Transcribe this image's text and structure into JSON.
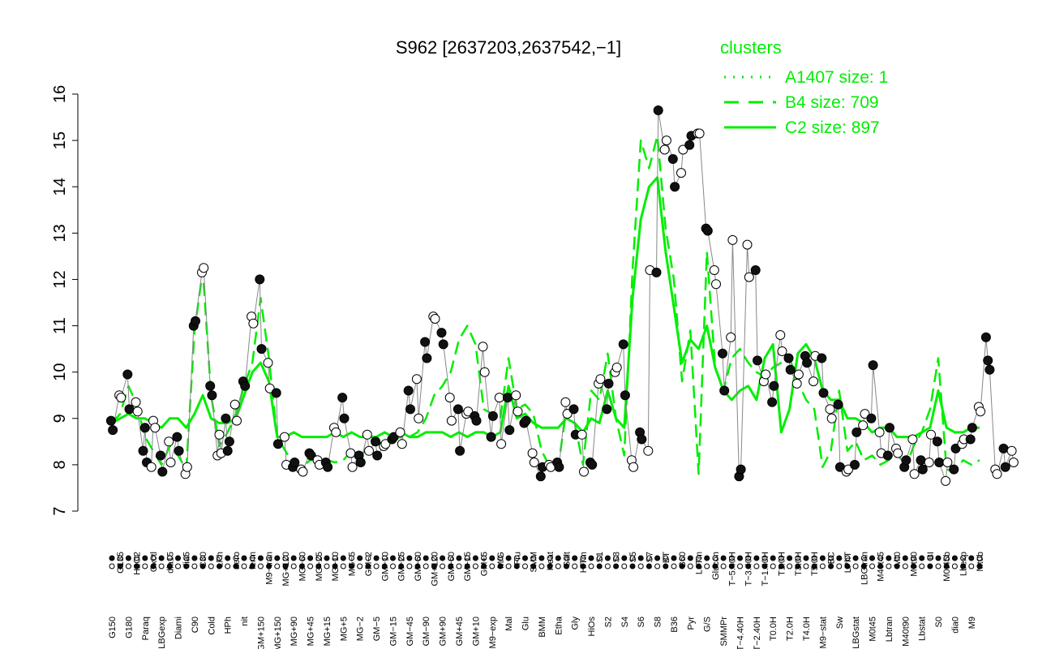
{
  "chart_data": {
    "type": "line",
    "title": "S962 [2637203,2637542,−1]",
    "xlabel": "",
    "ylabel": "",
    "ylim": [
      7,
      16
    ],
    "yticks": [
      7,
      8,
      9,
      10,
      11,
      12,
      13,
      14,
      15,
      16
    ],
    "grid": false,
    "legend": {
      "title": "clusters",
      "placement": "top-right",
      "entries": [
        {
          "label": "A1407 size: 1",
          "style": "dotted",
          "color": "#00ee00"
        },
        {
          "label": "B4 size: 709",
          "style": "dashed",
          "color": "#00ee00"
        },
        {
          "label": "C2 size: 897",
          "style": "solid",
          "color": "#00ee00"
        }
      ]
    },
    "x_tick_labels": [
      "G150",
      "G135",
      "G180",
      "H2O2",
      "Paraq",
      "Oxctl",
      "LBGexp",
      "dia15",
      "Diami",
      "dia5",
      "C90",
      "C30",
      "Cold",
      "LPh",
      "HPh",
      "aero",
      "nit",
      "ferm",
      "GM+150",
      "M9−tran",
      "MG+150",
      "MG+120",
      "MG+90",
      "MG+60",
      "MG+45",
      "MG+25",
      "MG+15",
      "MG+10",
      "MG+5",
      "MG−5",
      "MG−2",
      "GM−2",
      "GM−5",
      "GM−10",
      "GM−15",
      "GM−25",
      "GM−45",
      "GM−60",
      "GM−90",
      "GM+120",
      "GM+90",
      "GM+60",
      "GM+45",
      "GM+15",
      "GM+10",
      "GM+5",
      "M9−exp",
      "M/G",
      "Mal",
      "Fru",
      "Glu",
      "SMM",
      "BMM",
      "Heat",
      "Etha",
      "Salt",
      "Gly",
      "HiTm",
      "HiOs",
      "S1",
      "S2",
      "S3",
      "S4",
      "S5",
      "S6",
      "S7",
      "S8",
      "BT",
      "B36",
      "B60",
      "Pyr",
      "LoTm",
      "G/S",
      "Glucon",
      "SMMPr",
      "T−5.40H",
      "T−4.40H",
      "T−3.40H",
      "T−2.40H",
      "T−1.40H",
      "T0.0H",
      "T1.0H",
      "T2.0H",
      "T3.0H",
      "T4.0H",
      "T5.0H",
      "M9−stat",
      "BC",
      "Sw",
      "LPhT",
      "LBGstat",
      "LBGtran",
      "M0t45",
      "M40t45",
      "Lbtran",
      "Mt0",
      "M40t90",
      "M0t90",
      "Lbstat",
      "BI",
      "S0",
      "M0t45b",
      "dia0",
      "Lbexp",
      "M9",
      "Mt0b"
    ],
    "series": [
      {
        "name": "B4 size: 709",
        "style": "dashed",
        "values": [
          8.9,
          9.1,
          9.7,
          9.3,
          8.6,
          8.3,
          8.0,
          8.4,
          8.2,
          7.9,
          10.9,
          12.2,
          9.5,
          8.4,
          8.7,
          9.1,
          9.7,
          10.2,
          11.6,
          10.3,
          8.6,
          8.3,
          8.0,
          7.95,
          8.1,
          8.1,
          8.1,
          8.05,
          8.1,
          8.3,
          8.2,
          8.35,
          8.5,
          8.45,
          8.55,
          8.6,
          8.6,
          8.7,
          9.0,
          9.5,
          9.7,
          10.0,
          10.7,
          11.0,
          10.6,
          9.2,
          9.1,
          9.0,
          10.3,
          9.2,
          9.3,
          9.1,
          8.3,
          7.95,
          7.95,
          9.2,
          8.9,
          8.0,
          9.6,
          9.4,
          10.4,
          9.0,
          8.2,
          12.2,
          15.0,
          14.4,
          15.1,
          13.1,
          12.0,
          9.8,
          10.9,
          7.8,
          12.6,
          10.1,
          9.6,
          10.3,
          10.5,
          10.2,
          10.0,
          9.9,
          10.1,
          10.2,
          10.3,
          9.8,
          9.4,
          9.2,
          7.95,
          8.3,
          9.6,
          8.3,
          8.5,
          8.1,
          8.2,
          8.0,
          8.1,
          8.3,
          7.9,
          8.4,
          8.7,
          9.2,
          10.3,
          7.9,
          7.85,
          8.1,
          8.0,
          8.1
        ]
      },
      {
        "name": "C2 size: 897",
        "style": "solid",
        "values": [
          8.9,
          9.0,
          9.1,
          9.0,
          9.0,
          8.9,
          8.8,
          9.0,
          9.0,
          8.8,
          9.1,
          9.5,
          9.0,
          8.9,
          8.9,
          9.0,
          9.5,
          10.0,
          10.2,
          9.8,
          8.6,
          8.6,
          8.7,
          8.6,
          8.6,
          8.6,
          8.6,
          8.7,
          8.6,
          8.7,
          8.6,
          8.6,
          8.6,
          8.7,
          8.6,
          8.7,
          8.6,
          8.6,
          8.7,
          8.7,
          8.7,
          8.6,
          8.7,
          8.6,
          8.7,
          8.7,
          8.6,
          8.7,
          9.7,
          9.0,
          9.1,
          8.9,
          8.8,
          8.8,
          8.8,
          9.0,
          8.9,
          8.7,
          9.0,
          8.9,
          9.6,
          9.0,
          8.8,
          11.6,
          13.3,
          14.0,
          14.2,
          12.6,
          11.4,
          10.2,
          10.7,
          10.5,
          11.0,
          10.1,
          9.6,
          9.4,
          9.6,
          9.7,
          9.4,
          10.3,
          10.6,
          8.7,
          9.2,
          10.4,
          10.6,
          10.3,
          9.6,
          9.4,
          9.4,
          9.0,
          9.0,
          8.9,
          8.7,
          8.8,
          8.8,
          8.6,
          8.6,
          8.6,
          8.7,
          8.8,
          9.6,
          8.8,
          8.7,
          8.7,
          8.8,
          8.8
        ]
      }
    ],
    "points": [
      {
        "x": 0,
        "ys": [
          8.95,
          8.75
        ]
      },
      {
        "x": 1,
        "ys": [
          9.5,
          9.45
        ]
      },
      {
        "x": 2,
        "ys": [
          9.95,
          9.2
        ]
      },
      {
        "x": 3,
        "ys": [
          9.35,
          9.15
        ]
      },
      {
        "x": 4,
        "ys": [
          8.3,
          8.8,
          8.05
        ]
      },
      {
        "x": 5,
        "ys": [
          7.95,
          8.95,
          8.8
        ]
      },
      {
        "x": 6,
        "ys": [
          8.2,
          7.85
        ]
      },
      {
        "x": 7,
        "ys": [
          8.5,
          8.05
        ]
      },
      {
        "x": 8,
        "ys": [
          8.6,
          8.3
        ]
      },
      {
        "x": 9,
        "ys": [
          7.8,
          7.95
        ]
      },
      {
        "x": 10,
        "ys": [
          11.0,
          11.1
        ]
      },
      {
        "x": 11,
        "ys": [
          12.15,
          12.25
        ]
      },
      {
        "x": 12,
        "ys": [
          9.7,
          9.5
        ]
      },
      {
        "x": 13,
        "ys": [
          8.2,
          8.65,
          8.25
        ]
      },
      {
        "x": 14,
        "ys": [
          9.0,
          8.3,
          8.5
        ]
      },
      {
        "x": 15,
        "ys": [
          9.3,
          8.95
        ]
      },
      {
        "x": 16,
        "ys": [
          9.8,
          9.7
        ]
      },
      {
        "x": 17,
        "ys": [
          11.2,
          11.05
        ]
      },
      {
        "x": 18,
        "ys": [
          12.0,
          10.5
        ]
      },
      {
        "x": 19,
        "ys": [
          10.2,
          9.65
        ]
      },
      {
        "x": 20,
        "ys": [
          9.55,
          8.45
        ]
      },
      {
        "x": 21,
        "ys": [
          8.6,
          8.0
        ]
      },
      {
        "x": 22,
        "ys": [
          7.95,
          8.05
        ]
      },
      {
        "x": 23,
        "ys": [
          7.9,
          7.85
        ]
      },
      {
        "x": 24,
        "ys": [
          8.25,
          8.2
        ]
      },
      {
        "x": 25,
        "ys": [
          8.1,
          8.0
        ]
      },
      {
        "x": 26,
        "ys": [
          8.05,
          7.95
        ]
      },
      {
        "x": 27,
        "ys": [
          8.8,
          8.7
        ]
      },
      {
        "x": 28,
        "ys": [
          9.45,
          9.0
        ]
      },
      {
        "x": 29,
        "ys": [
          8.25,
          7.95
        ]
      },
      {
        "x": 30,
        "ys": [
          8.2,
          8.05
        ]
      },
      {
        "x": 31,
        "ys": [
          8.65,
          8.3
        ]
      },
      {
        "x": 32,
        "ys": [
          8.5,
          8.2
        ]
      },
      {
        "x": 33,
        "ys": [
          8.4,
          8.45
        ]
      },
      {
        "x": 34,
        "ys": [
          8.55,
          8.6
        ]
      },
      {
        "x": 35,
        "ys": [
          8.7,
          8.45
        ]
      },
      {
        "x": 36,
        "ys": [
          9.6,
          9.2
        ]
      },
      {
        "x": 37,
        "ys": [
          9.85,
          9.0
        ]
      },
      {
        "x": 38,
        "ys": [
          10.65,
          10.3
        ]
      },
      {
        "x": 39,
        "ys": [
          11.2,
          11.15
        ]
      },
      {
        "x": 40,
        "ys": [
          10.85,
          10.6
        ]
      },
      {
        "x": 41,
        "ys": [
          9.45,
          8.95
        ]
      },
      {
        "x": 42,
        "ys": [
          9.2,
          8.3
        ]
      },
      {
        "x": 43,
        "ys": [
          9.1,
          9.15
        ]
      },
      {
        "x": 44,
        "ys": [
          9.05,
          8.95
        ]
      },
      {
        "x": 45,
        "ys": [
          10.55,
          10.0
        ]
      },
      {
        "x": 46,
        "ys": [
          8.6,
          9.05
        ]
      },
      {
        "x": 47,
        "ys": [
          9.45,
          8.45
        ]
      },
      {
        "x": 48,
        "ys": [
          9.45,
          8.75
        ]
      },
      {
        "x": 49,
        "ys": [
          9.5,
          9.15
        ]
      },
      {
        "x": 50,
        "ys": [
          8.9,
          8.95
        ]
      },
      {
        "x": 51,
        "ys": [
          8.25,
          8.05
        ]
      },
      {
        "x": 52,
        "ys": [
          7.75,
          7.95
        ]
      },
      {
        "x": 53,
        "ys": [
          8.0,
          7.95
        ]
      },
      {
        "x": 54,
        "ys": [
          8.05,
          7.95
        ]
      },
      {
        "x": 55,
        "ys": [
          9.35,
          9.1
        ]
      },
      {
        "x": 56,
        "ys": [
          9.2,
          8.65
        ]
      },
      {
        "x": 57,
        "ys": [
          8.65,
          7.85
        ]
      },
      {
        "x": 58,
        "ys": [
          8.05,
          8.0
        ]
      },
      {
        "x": 59,
        "ys": [
          9.75,
          9.85
        ]
      },
      {
        "x": 60,
        "ys": [
          9.2,
          9.75
        ]
      },
      {
        "x": 61,
        "ys": [
          10.0,
          10.1
        ]
      },
      {
        "x": 62,
        "ys": [
          10.6,
          9.5
        ]
      },
      {
        "x": 63,
        "ys": [
          8.1,
          7.95
        ]
      },
      {
        "x": 64,
        "ys": [
          8.7,
          8.55
        ]
      },
      {
        "x": 65,
        "ys": [
          8.3,
          12.2
        ]
      },
      {
        "x": 66,
        "ys": [
          12.15,
          15.65
        ]
      },
      {
        "x": 67,
        "ys": [
          14.8,
          15.0
        ]
      },
      {
        "x": 68,
        "ys": [
          14.6,
          14.0
        ]
      },
      {
        "x": 69,
        "ys": [
          14.3,
          14.8
        ]
      },
      {
        "x": 70,
        "ys": [
          14.9,
          15.1
        ]
      },
      {
        "x": 71,
        "ys": [
          15.15,
          15.15
        ]
      },
      {
        "x": 72,
        "ys": [
          13.1,
          13.05
        ]
      },
      {
        "x": 73,
        "ys": [
          12.2,
          11.9
        ]
      },
      {
        "x": 74,
        "ys": [
          10.4,
          9.6
        ]
      },
      {
        "x": 75,
        "ys": [
          10.75,
          12.85
        ]
      },
      {
        "x": 76,
        "ys": [
          7.75,
          7.9
        ]
      },
      {
        "x": 77,
        "ys": [
          12.75,
          12.05
        ]
      },
      {
        "x": 78,
        "ys": [
          12.2,
          10.25
        ]
      },
      {
        "x": 79,
        "ys": [
          9.8,
          9.95
        ]
      },
      {
        "x": 80,
        "ys": [
          9.35,
          9.7
        ]
      },
      {
        "x": 81,
        "ys": [
          10.8,
          10.45
        ]
      },
      {
        "x": 82,
        "ys": [
          10.3,
          10.05
        ]
      },
      {
        "x": 83,
        "ys": [
          9.75,
          9.95
        ]
      },
      {
        "x": 84,
        "ys": [
          10.35,
          10.2
        ]
      },
      {
        "x": 85,
        "ys": [
          9.8,
          10.35
        ]
      },
      {
        "x": 86,
        "ys": [
          10.3,
          9.55
        ]
      },
      {
        "x": 87,
        "ys": [
          9.2,
          9.0
        ]
      },
      {
        "x": 88,
        "ys": [
          9.3,
          7.95
        ]
      },
      {
        "x": 89,
        "ys": [
          7.85,
          7.9
        ]
      },
      {
        "x": 90,
        "ys": [
          8.0,
          8.7
        ]
      },
      {
        "x": 91,
        "ys": [
          8.85,
          9.1
        ]
      },
      {
        "x": 92,
        "ys": [
          9.0,
          10.15
        ]
      },
      {
        "x": 93,
        "ys": [
          8.7,
          8.25
        ]
      },
      {
        "x": 94,
        "ys": [
          8.2,
          8.8
        ]
      },
      {
        "x": 95,
        "ys": [
          8.35,
          8.25
        ]
      },
      {
        "x": 96,
        "ys": [
          7.95,
          8.1
        ]
      },
      {
        "x": 97,
        "ys": [
          8.55,
          7.8
        ]
      },
      {
        "x": 98,
        "ys": [
          8.1,
          7.9
        ]
      },
      {
        "x": 99,
        "ys": [
          8.05,
          8.65
        ]
      },
      {
        "x": 100,
        "ys": [
          8.5,
          8.05
        ]
      },
      {
        "x": 101,
        "ys": [
          7.65,
          8.05
        ]
      },
      {
        "x": 102,
        "ys": [
          7.9,
          8.35
        ]
      },
      {
        "x": 103,
        "ys": [
          8.45,
          8.55
        ]
      },
      {
        "x": 104,
        "ys": [
          8.55,
          8.8
        ]
      },
      {
        "x": 105,
        "ys": [
          9.25,
          9.15
        ]
      },
      {
        "x": 106,
        "ys": [
          10.75,
          10.25,
          10.05
        ]
      },
      {
        "x": 107,
        "ys": [
          7.9,
          7.8
        ]
      },
      {
        "x": 108,
        "ys": [
          8.35,
          7.95
        ]
      },
      {
        "x": 109,
        "ys": [
          8.3,
          8.05
        ]
      }
    ]
  }
}
